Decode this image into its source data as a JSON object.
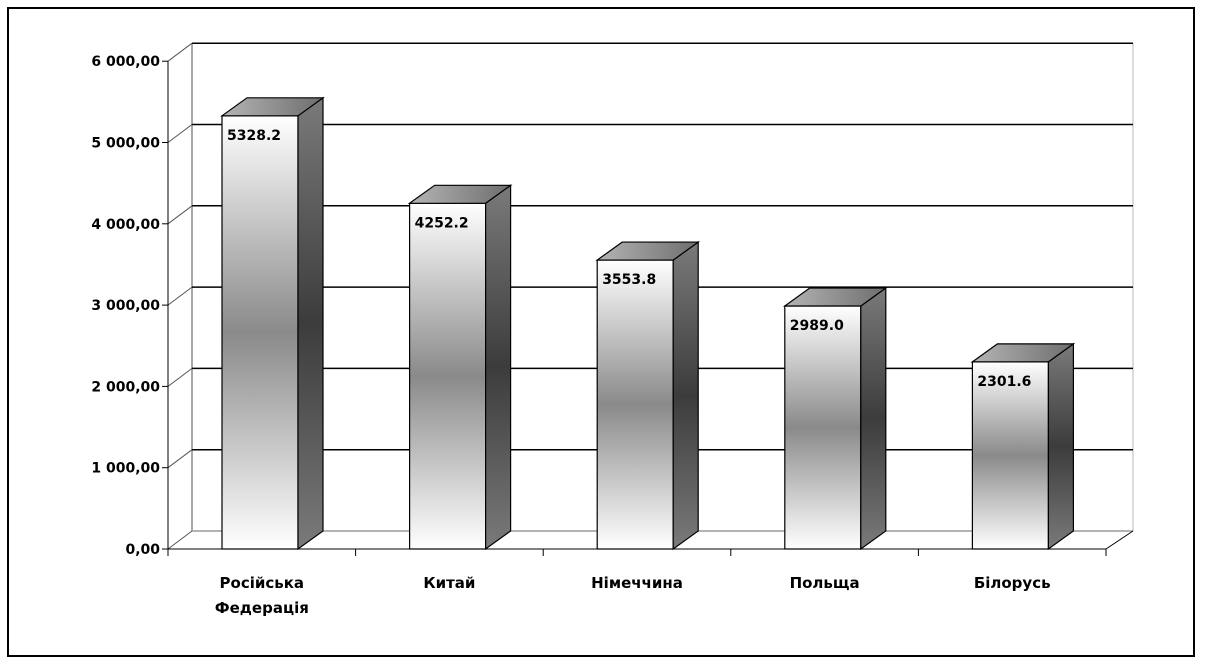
{
  "chart_data": {
    "type": "bar",
    "style": "3d",
    "categories": [
      "Російська Федерація",
      "Китай",
      "Німеччина",
      "Польща",
      "Білорусь"
    ],
    "category_lines": [
      [
        "Російська",
        "Федерація"
      ],
      [
        "Китай"
      ],
      [
        "Німеччина"
      ],
      [
        "Польща"
      ],
      [
        "Білорусь"
      ]
    ],
    "values": [
      5328.2,
      4252.2,
      3553.8,
      2989.0,
      2301.6
    ],
    "data_labels": [
      "5328.2",
      "4252.2",
      "3553.8",
      "2989.0",
      "2301.6"
    ],
    "ylim": [
      0,
      6000
    ],
    "yticks": [
      0,
      1000,
      2000,
      3000,
      4000,
      5000,
      6000
    ],
    "ytick_labels": [
      "0,00",
      "1 000,00",
      "2 000,00",
      "3 000,00",
      "4 000,00",
      "5 000,00",
      "6 000,00"
    ],
    "grid": true,
    "legend": "none",
    "title": "",
    "xlabel": "",
    "ylabel": ""
  }
}
